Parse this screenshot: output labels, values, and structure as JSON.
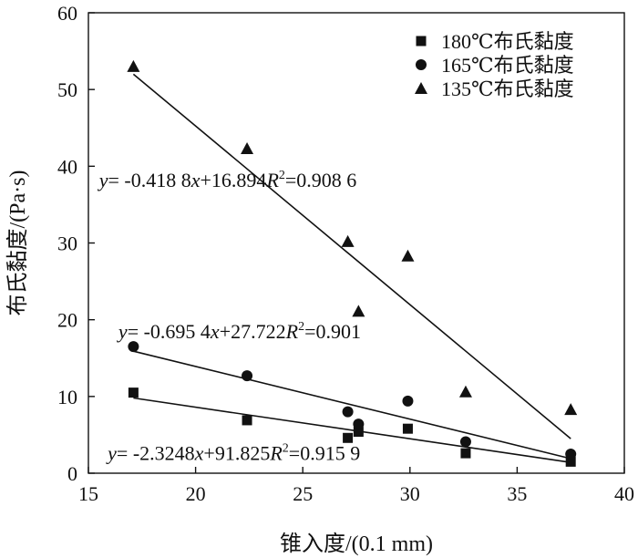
{
  "chart_data": {
    "type": "scatter",
    "xlabel": "锥入度/(0.1 mm)",
    "ylabel": "布氏黏度/(Pa·s)",
    "xlim": [
      15,
      40
    ],
    "ylim": [
      0,
      60
    ],
    "xticks": [
      15,
      20,
      25,
      30,
      35,
      40
    ],
    "yticks": [
      0,
      10,
      20,
      30,
      40,
      50,
      60
    ],
    "grid": false,
    "legend_position": "top-right",
    "series": [
      {
        "name": "180℃布氏黏度",
        "marker": "square",
        "points": [
          {
            "x": 17.1,
            "y": 10.5
          },
          {
            "x": 22.4,
            "y": 6.9
          },
          {
            "x": 27.1,
            "y": 4.6
          },
          {
            "x": 27.6,
            "y": 5.4
          },
          {
            "x": 29.9,
            "y": 5.8
          },
          {
            "x": 32.6,
            "y": 2.6
          },
          {
            "x": 37.5,
            "y": 1.5
          }
        ],
        "fit": {
          "x": [
            17.1,
            37.5
          ],
          "y": [
            9.8,
            1.4
          ]
        }
      },
      {
        "name": "165℃布氏黏度",
        "marker": "circle",
        "points": [
          {
            "x": 17.1,
            "y": 16.5
          },
          {
            "x": 22.4,
            "y": 12.7
          },
          {
            "x": 27.1,
            "y": 8.0
          },
          {
            "x": 27.6,
            "y": 6.4
          },
          {
            "x": 29.9,
            "y": 9.4
          },
          {
            "x": 32.6,
            "y": 4.1
          },
          {
            "x": 37.5,
            "y": 2.5
          }
        ],
        "fit": {
          "x": [
            17.1,
            37.5
          ],
          "y": [
            15.9,
            1.9
          ]
        }
      },
      {
        "name": "135℃布氏黏度",
        "marker": "triangle",
        "points": [
          {
            "x": 17.1,
            "y": 53.0
          },
          {
            "x": 22.4,
            "y": 42.3
          },
          {
            "x": 27.1,
            "y": 30.2
          },
          {
            "x": 27.6,
            "y": 21.1
          },
          {
            "x": 29.9,
            "y": 28.3
          },
          {
            "x": 32.6,
            "y": 10.6
          },
          {
            "x": 37.5,
            "y": 8.3
          }
        ],
        "fit": {
          "x": [
            17.1,
            37.5
          ],
          "y": [
            52.0,
            4.5
          ]
        }
      }
    ],
    "annotations": [
      {
        "y_label": "y",
        "mid": "= -0.418 8",
        "x_label": "x",
        "rest": "+16.894",
        "r_label": "R",
        "r_sup": "2",
        "r_value": "=0.908 6",
        "anchor_x": 15.5,
        "anchor_y": 37.3
      },
      {
        "y_label": "y",
        "mid": "= -0.695 4",
        "x_label": "x",
        "rest": "+27.722",
        "r_label": "R",
        "r_sup": "2",
        "r_value": "=0.901",
        "anchor_x": 16.4,
        "anchor_y": 17.6
      },
      {
        "y_label": "y",
        "mid": "= -2.3248",
        "x_label": "x",
        "rest": "+91.825",
        "r_label": "R",
        "r_sup": "2",
        "r_value": "=0.915 9",
        "anchor_x": 15.9,
        "anchor_y": 1.7
      }
    ]
  }
}
